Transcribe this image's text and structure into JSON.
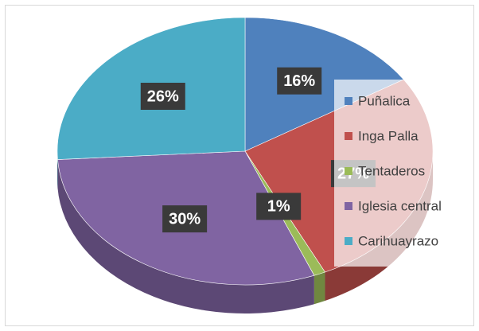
{
  "chart_data": {
    "type": "pie3d",
    "categories": [
      "Puñalica",
      "Inga Palla",
      "Tentaderos",
      "Iglesia central",
      "Carihuayrazo"
    ],
    "values": [
      16,
      27,
      1,
      30,
      26
    ],
    "value_labels": [
      "16%",
      "27%",
      "1%",
      "30%",
      "26%"
    ],
    "colors": [
      "#4f81bd",
      "#c0504d",
      "#9bbb59",
      "#8064a2",
      "#4bacc6"
    ],
    "legend": "right"
  }
}
